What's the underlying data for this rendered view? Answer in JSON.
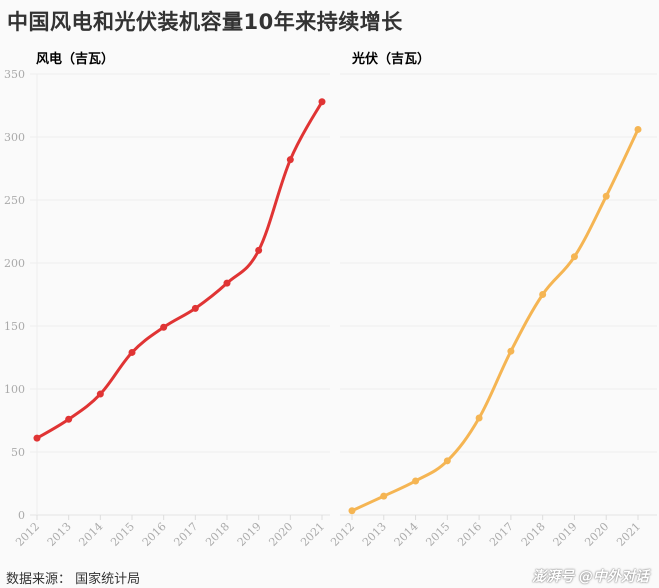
{
  "title": "中国风电和光伏装机容量10年来持续增长",
  "source": "数据来源：  国家统计局",
  "watermark": "澎湃号 @中外对话",
  "chart_data": [
    {
      "type": "line",
      "title": "风电（吉瓦）",
      "color": "#e03434",
      "categories": [
        "2012",
        "2013",
        "2014",
        "2015",
        "2016",
        "2017",
        "2018",
        "2019",
        "2020",
        "2021"
      ],
      "values": [
        61,
        76,
        96,
        129,
        149,
        164,
        184,
        210,
        282,
        328
      ],
      "ylim": [
        0,
        350
      ],
      "yticks": [
        0,
        50,
        100,
        150,
        200,
        250,
        300,
        350
      ],
      "grid": true
    },
    {
      "type": "line",
      "title": "光伏（吉瓦）",
      "color": "#f5b553",
      "categories": [
        "2012",
        "2013",
        "2014",
        "2015",
        "2016",
        "2017",
        "2018",
        "2019",
        "2020",
        "2021"
      ],
      "values": [
        3.4,
        15,
        27,
        43,
        77,
        130,
        175,
        205,
        253,
        306
      ],
      "ylim": [
        0,
        350
      ],
      "grid": true
    }
  ]
}
